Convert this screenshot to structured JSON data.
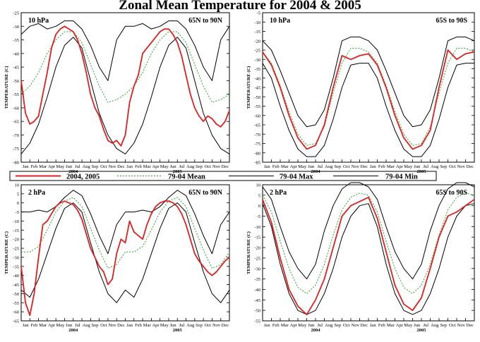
{
  "title": "Zonal Mean Temperature for 2004 & 2005",
  "colors": {
    "series_2004_2005": "#e02020",
    "mean": "#2fa02f",
    "max_min": "#000000"
  },
  "legend": {
    "items": [
      "2004, 2005",
      "79-04 Mean",
      "79-04 Max",
      "79-04 Min"
    ]
  },
  "months": [
    "Jan",
    "Feb",
    "Mar",
    "Apr",
    "May",
    "Jun",
    "Jul",
    "Aug",
    "Sep",
    "Oct",
    "Nov",
    "Dec"
  ],
  "years": [
    "2004",
    "2005"
  ],
  "ylabel": "TEMPERATURE (C)",
  "chart_data": [
    {
      "type": "line",
      "pressure": "10 hPa",
      "region": "65N to 90N",
      "ylim": [
        -80,
        -25
      ],
      "yticks": [
        -80,
        -75,
        -70,
        -65,
        -60,
        -55,
        -50,
        -45,
        -40,
        -35,
        -30,
        -25
      ],
      "x_unit": "month (0 = Jan 2004, 24 = end of Dec 2005)",
      "series": [
        {
          "name": "2004, 2005",
          "kind": "obs",
          "x": [
            0,
            0.5,
            1,
            1.5,
            2,
            2.5,
            3,
            3.5,
            4,
            4.5,
            5,
            5.5,
            6,
            6.5,
            7,
            7.5,
            8,
            8.5,
            9,
            9.5,
            10,
            10.5,
            11,
            11.5,
            12,
            12.5,
            13,
            13.5,
            14,
            14.5,
            15,
            15.5,
            16,
            16.5,
            17,
            17.5,
            18,
            18.5,
            19,
            19.5,
            20,
            20.5,
            21,
            21.5,
            22,
            22.5,
            23,
            23.5,
            24
          ],
          "y": [
            -50,
            -62,
            -66,
            -65,
            -63,
            -55,
            -47,
            -38,
            -33,
            -31,
            -30,
            -31,
            -32,
            -35,
            -40,
            -47,
            -55,
            -60,
            -63,
            -68,
            -72,
            -73,
            -72,
            -74,
            -70,
            -58,
            -52,
            -48,
            -40,
            -38,
            -36,
            -34,
            -32,
            -31,
            -31,
            -33,
            -36,
            -41,
            -48,
            -55,
            -60,
            -63,
            -65,
            -63,
            -64,
            -66,
            -67,
            -65,
            -61
          ]
        },
        {
          "name": "79-04 Mean",
          "kind": "mean",
          "x": [
            0,
            1,
            2,
            3,
            4,
            5,
            6,
            7,
            8,
            9,
            10,
            11,
            12,
            13,
            14,
            15,
            16,
            17,
            18,
            19,
            20,
            21,
            22,
            23,
            24
          ],
          "y": [
            -55,
            -52,
            -47,
            -40,
            -35,
            -32,
            -32,
            -36,
            -44,
            -52,
            -58,
            -57,
            -55,
            -52,
            -47,
            -40,
            -35,
            -32,
            -32,
            -36,
            -44,
            -52,
            -58,
            -57,
            -55
          ]
        },
        {
          "name": "79-04 Max",
          "kind": "max",
          "x": [
            0,
            1,
            2,
            3,
            4,
            5,
            6,
            7,
            8,
            9,
            10,
            11,
            12,
            13,
            14,
            15,
            16,
            17,
            18,
            19,
            20,
            21,
            22,
            23,
            24
          ],
          "y": [
            -33,
            -30,
            -29,
            -31,
            -30,
            -28,
            -28,
            -31,
            -37,
            -45,
            -50,
            -35,
            -30,
            -30,
            -29,
            -31,
            -30,
            -28,
            -28,
            -31,
            -37,
            -45,
            -50,
            -35,
            -30
          ]
        },
        {
          "name": "79-04 Min",
          "kind": "min",
          "x": [
            0,
            1,
            2,
            3,
            4,
            5,
            6,
            7,
            8,
            9,
            10,
            11,
            12,
            13,
            14,
            15,
            16,
            17,
            18,
            19,
            20,
            21,
            22,
            23,
            24
          ],
          "y": [
            -77,
            -73,
            -66,
            -56,
            -45,
            -37,
            -34,
            -38,
            -50,
            -62,
            -70,
            -75,
            -77,
            -73,
            -66,
            -56,
            -45,
            -37,
            -34,
            -38,
            -50,
            -62,
            -70,
            -75,
            -77
          ]
        }
      ]
    },
    {
      "type": "line",
      "pressure": "10 hPa",
      "region": "65S to 90S",
      "ylim": [
        -85,
        -5
      ],
      "yticks": [
        -85,
        -80,
        -75,
        -70,
        -65,
        -60,
        -55,
        -50,
        -45,
        -40,
        -35,
        -30,
        -25,
        -20,
        -15,
        -10,
        -5
      ],
      "x_unit": "month (0 = Jan 2004, 24 = end of Dec 2005)",
      "series": [
        {
          "name": "2004, 2005",
          "kind": "obs",
          "x": [
            0,
            1,
            2,
            3,
            4,
            5,
            6,
            7,
            8,
            9,
            10,
            11,
            12,
            13,
            14,
            15,
            16,
            17,
            18,
            19,
            20,
            21,
            22,
            23,
            24
          ],
          "y": [
            -26,
            -33,
            -45,
            -60,
            -72,
            -78,
            -76,
            -65,
            -45,
            -28,
            -30,
            -28,
            -27,
            -33,
            -45,
            -60,
            -72,
            -78,
            -76,
            -68,
            -45,
            -25,
            -30,
            -27,
            -26
          ]
        },
        {
          "name": "79-04 Mean",
          "kind": "mean",
          "x": [
            0,
            1,
            2,
            3,
            4,
            5,
            6,
            7,
            8,
            9,
            10,
            11,
            12,
            13,
            14,
            15,
            16,
            17,
            18,
            19,
            20,
            21,
            22,
            23,
            24
          ],
          "y": [
            -26,
            -32,
            -44,
            -58,
            -70,
            -76,
            -75,
            -66,
            -48,
            -32,
            -24,
            -24,
            -26,
            -32,
            -44,
            -58,
            -70,
            -76,
            -75,
            -66,
            -48,
            -32,
            -24,
            -24,
            -26
          ]
        },
        {
          "name": "79-04 Max",
          "kind": "max",
          "x": [
            0,
            1,
            2,
            3,
            4,
            5,
            6,
            7,
            8,
            9,
            10,
            11,
            12,
            13,
            14,
            15,
            16,
            17,
            18,
            19,
            20,
            21,
            22,
            23,
            24
          ],
          "y": [
            -20,
            -25,
            -36,
            -48,
            -60,
            -66,
            -65,
            -57,
            -40,
            -20,
            -18,
            -18,
            -20,
            -25,
            -36,
            -48,
            -60,
            -66,
            -65,
            -57,
            -40,
            -20,
            -18,
            -18,
            -20
          ]
        },
        {
          "name": "79-04 Min",
          "kind": "min",
          "x": [
            0,
            1,
            2,
            3,
            4,
            5,
            6,
            7,
            8,
            9,
            10,
            11,
            12,
            13,
            14,
            15,
            16,
            17,
            18,
            19,
            20,
            21,
            22,
            23,
            24
          ],
          "y": [
            -32,
            -40,
            -55,
            -68,
            -78,
            -82,
            -82,
            -76,
            -62,
            -45,
            -33,
            -32,
            -32,
            -40,
            -55,
            -68,
            -78,
            -82,
            -82,
            -76,
            -62,
            -45,
            -33,
            -32,
            -32
          ]
        }
      ]
    },
    {
      "type": "line",
      "pressure": "2 hPa",
      "region": "65N to 90N",
      "ylim": [
        -65,
        10
      ],
      "yticks": [
        -65,
        -60,
        -55,
        -50,
        -45,
        -40,
        -35,
        -30,
        -25,
        -20,
        -15,
        -10,
        -5,
        0,
        5,
        10
      ],
      "x_unit": "month (0 = Jan 2004, 24 = end of Dec 2005)",
      "series": [
        {
          "name": "2004, 2005",
          "kind": "obs",
          "x": [
            0,
            0.5,
            1,
            1.5,
            2,
            2.5,
            3,
            3.5,
            4,
            4.5,
            5,
            5.5,
            6,
            6.5,
            7,
            7.5,
            8,
            8.5,
            9,
            9.5,
            10,
            10.5,
            11,
            11.5,
            12,
            12.5,
            13,
            13.5,
            14,
            14.5,
            15,
            15.5,
            16,
            16.5,
            17,
            17.5,
            18,
            18.5,
            19,
            19.5,
            20,
            20.5,
            21,
            21.5,
            22,
            22.5,
            23,
            23.5,
            24
          ],
          "y": [
            -35,
            -55,
            -62,
            -50,
            -30,
            -12,
            -10,
            -6,
            -2,
            0,
            1,
            0,
            -1,
            -4,
            -9,
            -17,
            -25,
            -30,
            -35,
            -38,
            -45,
            -42,
            -28,
            -20,
            -22,
            -10,
            -16,
            -18,
            -20,
            -12,
            -6,
            -2,
            0,
            1,
            1,
            0,
            -2,
            -6,
            -12,
            -20,
            -28,
            -32,
            -35,
            -38,
            -40,
            -38,
            -35,
            -32,
            -30
          ]
        },
        {
          "name": "79-04 Mean",
          "kind": "mean",
          "x": [
            0,
            1,
            2,
            3,
            4,
            5,
            6,
            7,
            8,
            9,
            10,
            11,
            12,
            13,
            14,
            15,
            16,
            17,
            18,
            19,
            20,
            21,
            22,
            23,
            24
          ],
          "y": [
            -27,
            -27,
            -24,
            -15,
            -5,
            1,
            3,
            -2,
            -14,
            -26,
            -36,
            -34,
            -27,
            -27,
            -24,
            -15,
            -5,
            1,
            3,
            -2,
            -14,
            -26,
            -36,
            -34,
            -27
          ]
        },
        {
          "name": "79-04 Max",
          "kind": "max",
          "x": [
            0,
            1,
            2,
            3,
            4,
            5,
            6,
            7,
            8,
            9,
            10,
            11,
            12,
            13,
            14,
            15,
            16,
            17,
            18,
            19,
            20,
            21,
            22,
            23,
            24
          ],
          "y": [
            -5,
            -5,
            -4,
            -5,
            -2,
            3,
            7,
            4,
            -6,
            -18,
            -28,
            -12,
            -5,
            -5,
            -4,
            -5,
            -2,
            3,
            7,
            4,
            -6,
            -18,
            -28,
            -12,
            -5
          ]
        },
        {
          "name": "79-04 Min",
          "kind": "min",
          "x": [
            0,
            1,
            2,
            3,
            4,
            5,
            6,
            7,
            8,
            9,
            10,
            11,
            12,
            13,
            14,
            15,
            16,
            17,
            18,
            19,
            20,
            21,
            22,
            23,
            24
          ],
          "y": [
            -48,
            -52,
            -42,
            -28,
            -14,
            -3,
            0,
            -5,
            -22,
            -38,
            -50,
            -55,
            -48,
            -52,
            -42,
            -28,
            -14,
            -3,
            0,
            -5,
            -22,
            -38,
            -50,
            -55,
            -48
          ]
        }
      ]
    },
    {
      "type": "line",
      "pressure": "2 hPa",
      "region": "65S to 90S",
      "ylim": [
        -55,
        10
      ],
      "yticks": [
        -55,
        -50,
        -45,
        -40,
        -35,
        -30,
        -25,
        -20,
        -15,
        -10,
        -5,
        0,
        5,
        10
      ],
      "x_unit": "month (0 = Jan 2004, 24 = end of Dec 2005)",
      "series": [
        {
          "name": "2004, 2005",
          "kind": "obs",
          "x": [
            0,
            1,
            2,
            3,
            4,
            5,
            6,
            7,
            8,
            9,
            10,
            11,
            12,
            13,
            14,
            15,
            16,
            17,
            18,
            19,
            20,
            21,
            22,
            23,
            24
          ],
          "y": [
            3,
            -8,
            -25,
            -40,
            -48,
            -52,
            -45,
            -35,
            -20,
            -5,
            0,
            2,
            4,
            -6,
            -22,
            -38,
            -47,
            -50,
            -44,
            -30,
            -15,
            -5,
            -3,
            0,
            3
          ]
        },
        {
          "name": "79-04 Mean",
          "kind": "mean",
          "x": [
            0,
            1,
            2,
            3,
            4,
            5,
            6,
            7,
            8,
            9,
            10,
            11,
            12,
            13,
            14,
            15,
            16,
            17,
            18,
            19,
            20,
            21,
            22,
            23,
            24
          ],
          "y": [
            5,
            -3,
            -17,
            -30,
            -39,
            -42,
            -38,
            -28,
            -14,
            -2,
            4,
            6,
            5,
            -3,
            -17,
            -30,
            -39,
            -42,
            -38,
            -28,
            -14,
            -2,
            4,
            6,
            5
          ]
        },
        {
          "name": "79-04 Max",
          "kind": "max",
          "x": [
            0,
            1,
            2,
            3,
            4,
            5,
            6,
            7,
            8,
            9,
            10,
            11,
            12,
            13,
            14,
            15,
            16,
            17,
            18,
            19,
            20,
            21,
            22,
            23,
            24
          ],
          "y": [
            9,
            3,
            -10,
            -22,
            -30,
            -35,
            -28,
            -12,
            0,
            8,
            11,
            11,
            9,
            3,
            -10,
            -22,
            -30,
            -35,
            -28,
            -12,
            0,
            8,
            11,
            11,
            9
          ]
        },
        {
          "name": "79-04 Min",
          "kind": "min",
          "x": [
            0,
            1,
            2,
            3,
            4,
            5,
            6,
            7,
            8,
            9,
            10,
            11,
            12,
            13,
            14,
            15,
            16,
            17,
            18,
            19,
            20,
            21,
            22,
            23,
            24
          ],
          "y": [
            1,
            -10,
            -28,
            -42,
            -50,
            -52,
            -50,
            -42,
            -30,
            -15,
            -5,
            0,
            1,
            -10,
            -28,
            -42,
            -50,
            -52,
            -50,
            -42,
            -30,
            -15,
            -5,
            0,
            1
          ]
        }
      ]
    }
  ]
}
